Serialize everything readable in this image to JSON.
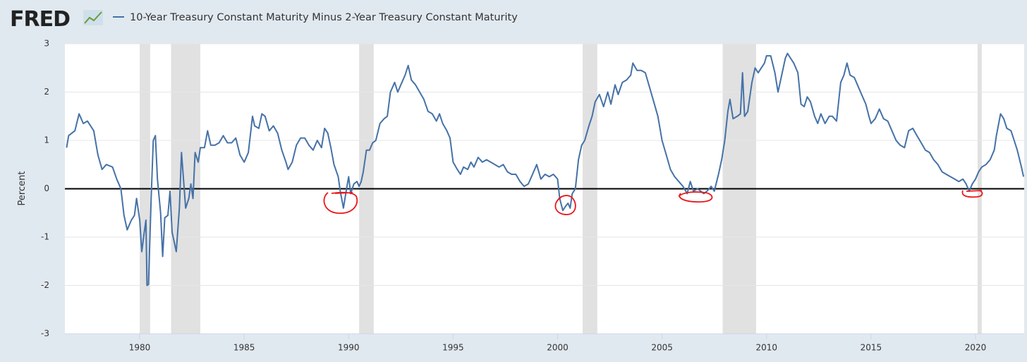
{
  "logo": "FRED",
  "chart_data": {
    "type": "line",
    "y_label": "Percent",
    "xlim": [
      1976.42,
      2022.33
    ],
    "xticks": [
      1980,
      1985,
      1990,
      1995,
      2000,
      2005,
      2010,
      2015,
      2020
    ],
    "ylim": [
      -3,
      3
    ],
    "yticks": [
      -3,
      -2,
      -1,
      0,
      1,
      2,
      3
    ],
    "grid": true,
    "recessions": [
      [
        1980.0,
        1980.5
      ],
      [
        1981.5,
        1982.9
      ],
      [
        1990.5,
        1991.2
      ],
      [
        2001.2,
        2001.9
      ],
      [
        2007.9,
        2009.5
      ],
      [
        2020.1,
        2020.3
      ]
    ],
    "x": [
      1976.5,
      1976.6,
      1976.9,
      1977.1,
      1977.3,
      1977.5,
      1977.8,
      1978.0,
      1978.2,
      1978.4,
      1978.7,
      1978.9,
      1979.1,
      1979.25,
      1979.4,
      1979.6,
      1979.75,
      1979.85,
      1979.95,
      1980.0,
      1980.1,
      1980.2,
      1980.3,
      1980.35,
      1980.42,
      1980.55,
      1980.65,
      1980.75,
      1980.85,
      1981.0,
      1981.1,
      1981.2,
      1981.35,
      1981.45,
      1981.55,
      1981.75,
      1981.9,
      1982.0,
      1982.2,
      1982.35,
      1982.45,
      1982.55,
      1982.65,
      1982.8,
      1982.9,
      1983.1,
      1983.25,
      1983.4,
      1983.6,
      1983.8,
      1984.0,
      1984.2,
      1984.4,
      1984.6,
      1984.8,
      1985.0,
      1985.2,
      1985.4,
      1985.5,
      1985.7,
      1985.85,
      1986.0,
      1986.2,
      1986.4,
      1986.6,
      1986.8,
      1987.0,
      1987.1,
      1987.3,
      1987.5,
      1987.7,
      1987.9,
      1988.1,
      1988.3,
      1988.5,
      1988.7,
      1988.85,
      1989.0,
      1989.15,
      1989.3,
      1989.5,
      1989.6,
      1989.75,
      1989.9,
      1990.0,
      1990.1,
      1990.25,
      1990.4,
      1990.5,
      1990.6,
      1990.7,
      1990.85,
      1991.0,
      1991.15,
      1991.3,
      1991.5,
      1991.7,
      1991.85,
      1992.0,
      1992.2,
      1992.35,
      1992.5,
      1992.7,
      1992.85,
      1993.0,
      1993.2,
      1993.4,
      1993.6,
      1993.8,
      1994.0,
      1994.2,
      1994.35,
      1994.5,
      1994.7,
      1994.85,
      1995.0,
      1995.2,
      1995.35,
      1995.5,
      1995.7,
      1995.85,
      1996.0,
      1996.2,
      1996.4,
      1996.6,
      1996.8,
      1997.0,
      1997.2,
      1997.4,
      1997.6,
      1997.8,
      1998.0,
      1998.2,
      1998.4,
      1998.6,
      1998.8,
      1999.0,
      1999.2,
      1999.4,
      1999.6,
      1999.8,
      2000.0,
      2000.1,
      2000.25,
      2000.4,
      2000.5,
      2000.6,
      2000.7,
      2000.85,
      2001.0,
      2001.15,
      2001.3,
      2001.5,
      2001.65,
      2001.8,
      2002.0,
      2002.2,
      2002.4,
      2002.55,
      2002.75,
      2002.9,
      2003.1,
      2003.3,
      2003.5,
      2003.6,
      2003.8,
      2004.0,
      2004.2,
      2004.4,
      2004.6,
      2004.8,
      2005.0,
      2005.2,
      2005.4,
      2005.6,
      2005.8,
      2006.0,
      2006.2,
      2006.35,
      2006.5,
      2006.7,
      2006.85,
      2007.0,
      2007.15,
      2007.35,
      2007.5,
      2007.7,
      2007.85,
      2008.0,
      2008.15,
      2008.25,
      2008.4,
      2008.6,
      2008.75,
      2008.85,
      2008.95,
      2009.1,
      2009.3,
      2009.45,
      2009.6,
      2009.75,
      2009.9,
      2010.0,
      2010.2,
      2010.4,
      2010.55,
      2010.7,
      2010.9,
      2011.0,
      2011.15,
      2011.3,
      2011.5,
      2011.65,
      2011.8,
      2011.95,
      2012.1,
      2012.3,
      2012.45,
      2012.6,
      2012.8,
      2013.0,
      2013.15,
      2013.35,
      2013.55,
      2013.7,
      2013.85,
      2014.0,
      2014.2,
      2014.4,
      2014.55,
      2014.75,
      2014.9,
      2015.0,
      2015.2,
      2015.4,
      2015.6,
      2015.8,
      2016.0,
      2016.2,
      2016.4,
      2016.6,
      2016.8,
      2017.0,
      2017.2,
      2017.4,
      2017.6,
      2017.8,
      2018.0,
      2018.2,
      2018.4,
      2018.6,
      2018.8,
      2019.0,
      2019.2,
      2019.4,
      2019.55,
      2019.7,
      2019.85,
      2020.0,
      2020.15,
      2020.3,
      2020.5,
      2020.7,
      2020.9,
      2021.0,
      2021.2,
      2021.35,
      2021.5,
      2021.7,
      2021.85,
      2022.0,
      2022.2,
      2022.3
    ],
    "series": [
      {
        "name": "10-Year Treasury Constant Maturity Minus 2-Year Treasury Constant Maturity",
        "color": "#4572a7",
        "values": [
          0.85,
          1.1,
          1.2,
          1.55,
          1.35,
          1.4,
          1.2,
          0.7,
          0.4,
          0.5,
          0.45,
          0.2,
          0.0,
          -0.55,
          -0.85,
          -0.65,
          -0.55,
          -0.2,
          -0.5,
          -0.65,
          -1.3,
          -0.95,
          -0.65,
          -2.0,
          -1.98,
          -0.2,
          1.0,
          1.1,
          0.2,
          -0.5,
          -1.4,
          -0.6,
          -0.55,
          -0.05,
          -0.9,
          -1.3,
          -0.4,
          0.75,
          -0.4,
          -0.2,
          0.1,
          -0.2,
          0.75,
          0.55,
          0.85,
          0.85,
          1.2,
          0.9,
          0.9,
          0.95,
          1.1,
          0.95,
          0.95,
          1.05,
          0.7,
          0.55,
          0.75,
          1.5,
          1.3,
          1.25,
          1.55,
          1.5,
          1.2,
          1.3,
          1.15,
          0.8,
          0.55,
          0.4,
          0.55,
          0.9,
          1.05,
          1.05,
          0.9,
          0.8,
          1.0,
          0.85,
          1.25,
          1.15,
          0.85,
          0.5,
          0.25,
          -0.05,
          -0.4,
          0.0,
          0.25,
          -0.1,
          0.1,
          0.15,
          0.05,
          0.15,
          0.35,
          0.8,
          0.8,
          0.95,
          1.0,
          1.35,
          1.45,
          1.5,
          2.0,
          2.2,
          2.0,
          2.15,
          2.35,
          2.55,
          2.25,
          2.15,
          2.0,
          1.85,
          1.6,
          1.55,
          1.4,
          1.55,
          1.35,
          1.2,
          1.05,
          0.55,
          0.4,
          0.3,
          0.45,
          0.4,
          0.55,
          0.45,
          0.65,
          0.55,
          0.6,
          0.55,
          0.5,
          0.45,
          0.5,
          0.35,
          0.3,
          0.3,
          0.15,
          0.05,
          0.1,
          0.3,
          0.5,
          0.2,
          0.3,
          0.25,
          0.3,
          0.2,
          -0.2,
          -0.45,
          -0.35,
          -0.3,
          -0.4,
          -0.1,
          0.0,
          0.6,
          0.9,
          1.0,
          1.3,
          1.5,
          1.8,
          1.95,
          1.7,
          2.0,
          1.75,
          2.15,
          1.95,
          2.2,
          2.25,
          2.35,
          2.6,
          2.45,
          2.45,
          2.4,
          2.1,
          1.8,
          1.5,
          1.0,
          0.7,
          0.4,
          0.25,
          0.15,
          0.05,
          -0.1,
          0.15,
          -0.05,
          0.0,
          -0.05,
          -0.1,
          -0.05,
          0.05,
          -0.05,
          0.3,
          0.6,
          1.0,
          1.6,
          1.85,
          1.45,
          1.5,
          1.55,
          2.4,
          1.5,
          1.6,
          2.2,
          2.5,
          2.4,
          2.5,
          2.6,
          2.75,
          2.75,
          2.4,
          2.0,
          2.3,
          2.7,
          2.8,
          2.7,
          2.6,
          2.4,
          1.75,
          1.7,
          1.9,
          1.8,
          1.5,
          1.35,
          1.55,
          1.35,
          1.5,
          1.5,
          1.4,
          2.2,
          2.35,
          2.6,
          2.35,
          2.3,
          2.1,
          1.95,
          1.75,
          1.5,
          1.35,
          1.45,
          1.65,
          1.45,
          1.4,
          1.2,
          1.0,
          0.9,
          0.85,
          1.2,
          1.25,
          1.1,
          0.95,
          0.8,
          0.75,
          0.6,
          0.5,
          0.35,
          0.3,
          0.25,
          0.2,
          0.15,
          0.2,
          0.1,
          -0.05,
          0.1,
          0.2,
          0.35,
          0.45,
          0.5,
          0.6,
          0.8,
          1.1,
          1.55,
          1.45,
          1.25,
          1.2,
          1.0,
          0.8,
          0.45,
          0.25
        ]
      }
    ]
  }
}
